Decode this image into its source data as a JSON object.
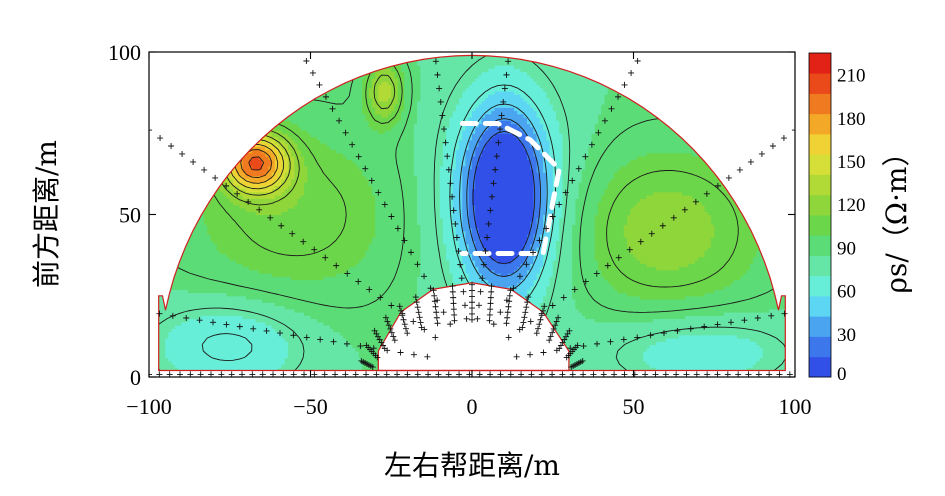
{
  "chart_data": {
    "type": "heatmap",
    "subtype": "filled-contour",
    "xlabel": "左右帮距离/m",
    "ylabel": "前方距离/m",
    "xlim": [
      -100,
      100
    ],
    "ylim": [
      0,
      100
    ],
    "x_ticks": [
      -100,
      -50,
      0,
      50,
      100
    ],
    "x_tick_labels": [
      "−100",
      "−50",
      "0",
      "50",
      "100"
    ],
    "y_ticks": [
      0,
      50,
      100
    ],
    "y_tick_labels": [
      "0",
      "50",
      "100"
    ],
    "colorbar": {
      "label": "ρs/（Ω·m）",
      "range": [
        0,
        225
      ],
      "ticks": [
        0,
        30,
        60,
        90,
        120,
        150,
        180,
        210
      ],
      "tick_labels": [
        "0",
        "30",
        "60",
        "90",
        "120",
        "150",
        "180",
        "210"
      ],
      "colors": [
        "#3050e8",
        "#3c78ec",
        "#4aa4f0",
        "#5cd6f2",
        "#66eed8",
        "#66e6a6",
        "#5cdc76",
        "#6cd64a",
        "#8ed63a",
        "#b2da36",
        "#d6de38",
        "#f0d234",
        "#f4a828",
        "#f07a20",
        "#ea4a1a",
        "#e22216"
      ]
    },
    "regions": [
      {
        "name": "high-resistivity-peak",
        "x": -67,
        "y": 66,
        "value": 210
      },
      {
        "name": "low-resistivity-anomaly",
        "x": 10,
        "y": 55,
        "value": 10
      },
      {
        "name": "secondary-high-left",
        "x": -27,
        "y": 88,
        "value": 140
      }
    ],
    "anomaly_outline": {
      "style": "white-dashed",
      "points": [
        [
          -3,
          78
        ],
        [
          8,
          78
        ],
        [
          18,
          73
        ],
        [
          27,
          64
        ],
        [
          22,
          38
        ],
        [
          -3,
          38
        ]
      ]
    }
  }
}
